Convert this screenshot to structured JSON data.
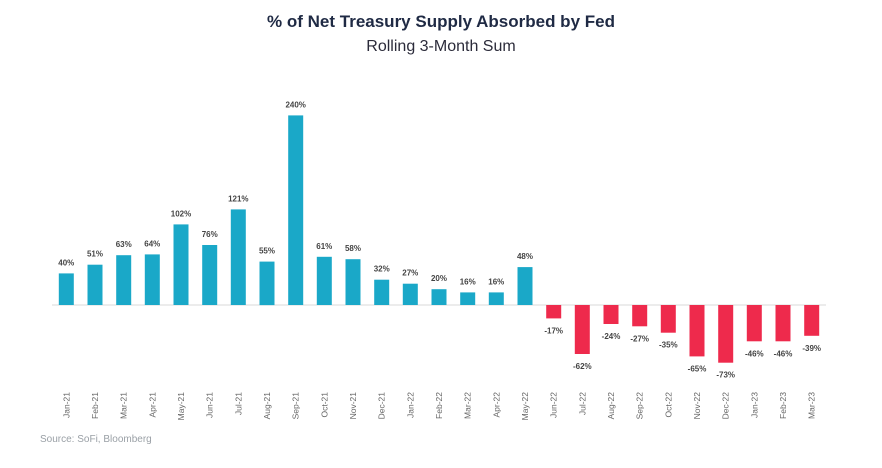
{
  "title": "% of Net Treasury Supply Absorbed by Fed",
  "subtitle": "Rolling 3-Month Sum",
  "source": "Source: SoFi, Bloomberg",
  "colors": {
    "positive": "#1aa8c8",
    "negative": "#ee2a4c",
    "label": "#444444",
    "axis_label": "#666666"
  },
  "chart_data": {
    "type": "bar",
    "title": "% of Net Treasury Supply Absorbed by Fed",
    "subtitle": "Rolling 3-Month Sum",
    "categories": [
      "Jan-21",
      "Feb-21",
      "Mar-21",
      "Apr-21",
      "May-21",
      "Jun-21",
      "Jul-21",
      "Aug-21",
      "Sep-21",
      "Oct-21",
      "Nov-21",
      "Dec-21",
      "Jan-22",
      "Feb-22",
      "Mar-22",
      "Apr-22",
      "May-22",
      "Jun-22",
      "Jul-22",
      "Aug-22",
      "Sep-22",
      "Oct-22",
      "Nov-22",
      "Dec-22",
      "Jan-23",
      "Feb-23",
      "Mar-23"
    ],
    "values": [
      40,
      51,
      63,
      64,
      102,
      76,
      121,
      55,
      240,
      61,
      58,
      32,
      27,
      20,
      16,
      16,
      48,
      -17,
      -62,
      -24,
      -27,
      -35,
      -65,
      -73,
      -46,
      -46,
      -39
    ],
    "data_labels": [
      "40%",
      "51%",
      "63%",
      "64%",
      "102%",
      "76%",
      "121%",
      "55%",
      "240%",
      "61%",
      "58%",
      "32%",
      "27%",
      "20%",
      "16%",
      "16%",
      "48%",
      "-17%",
      "-62%",
      "-24%",
      "-27%",
      "-35%",
      "-65%",
      "-73%",
      "-46%",
      "-46%",
      "-39%"
    ],
    "grid": false,
    "legend": "none"
  }
}
